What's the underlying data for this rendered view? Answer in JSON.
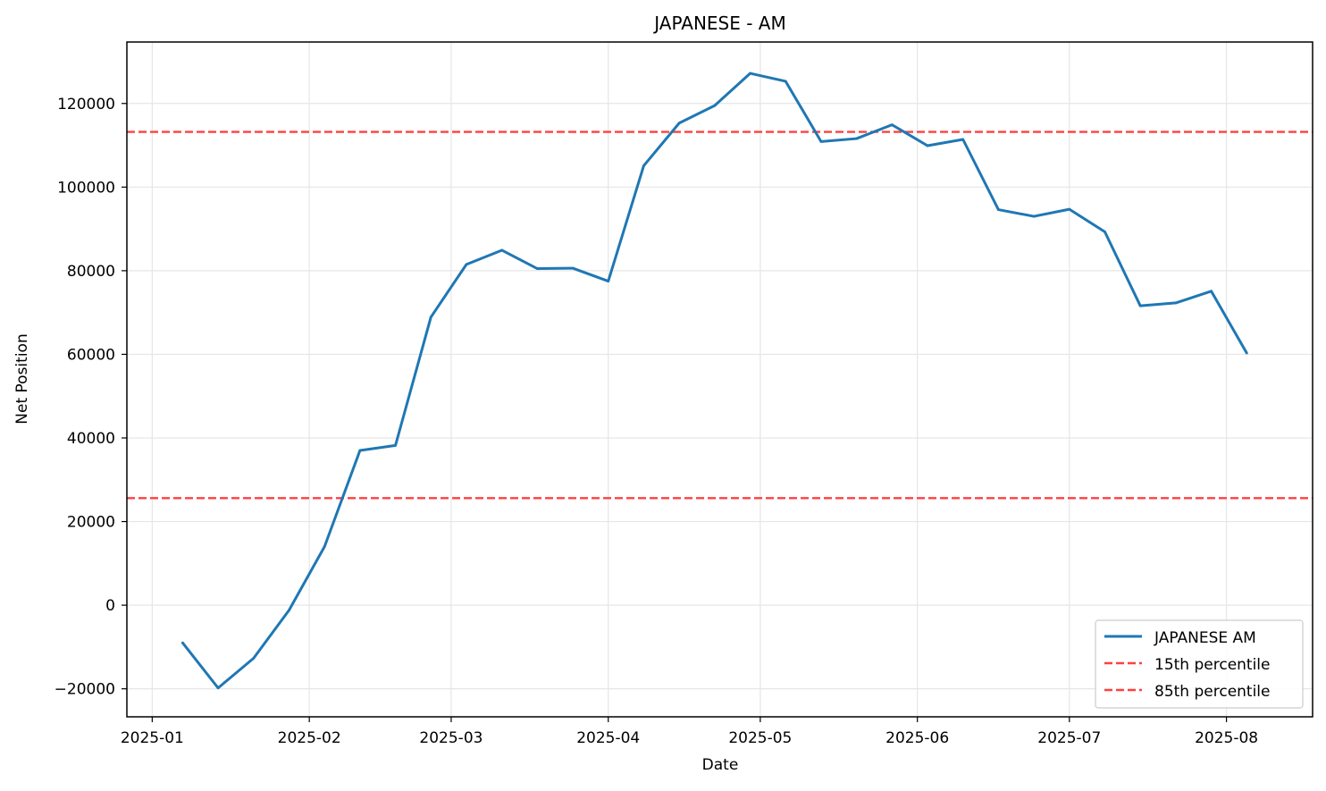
{
  "chart_data": {
    "type": "line",
    "title": "JAPANESE - AM",
    "xlabel": "Date",
    "ylabel": "Net Position",
    "x_ticks": [
      "2025-01",
      "2025-02",
      "2025-03",
      "2025-04",
      "2025-05",
      "2025-06",
      "2025-07",
      "2025-08"
    ],
    "y_ticks": [
      -20000,
      0,
      20000,
      40000,
      60000,
      80000,
      100000,
      120000
    ],
    "x_range": [
      "2024-12-27",
      "2025-08-18"
    ],
    "ylim": [
      -26700,
      134700
    ],
    "grid": true,
    "legend_position": "lower right",
    "series": [
      {
        "name": "JAPANESE AM",
        "color": "#1f77b4",
        "style": "solid",
        "points": [
          {
            "date": "2025-01-07",
            "value": -9000
          },
          {
            "date": "2025-01-14",
            "value": -19800
          },
          {
            "date": "2025-01-21",
            "value": -12700
          },
          {
            "date": "2025-01-28",
            "value": -1200
          },
          {
            "date": "2025-02-04",
            "value": 14000
          },
          {
            "date": "2025-02-11",
            "value": 37000
          },
          {
            "date": "2025-02-18",
            "value": 38200
          },
          {
            "date": "2025-02-25",
            "value": 68900
          },
          {
            "date": "2025-03-04",
            "value": 81500
          },
          {
            "date": "2025-03-11",
            "value": 84900
          },
          {
            "date": "2025-03-18",
            "value": 80500
          },
          {
            "date": "2025-03-25",
            "value": 80600
          },
          {
            "date": "2025-04-01",
            "value": 77500
          },
          {
            "date": "2025-04-08",
            "value": 105100
          },
          {
            "date": "2025-04-15",
            "value": 115300
          },
          {
            "date": "2025-04-22",
            "value": 119500
          },
          {
            "date": "2025-04-29",
            "value": 127200
          },
          {
            "date": "2025-05-06",
            "value": 125300
          },
          {
            "date": "2025-05-13",
            "value": 110900
          },
          {
            "date": "2025-05-20",
            "value": 111600
          },
          {
            "date": "2025-05-27",
            "value": 114900
          },
          {
            "date": "2025-06-03",
            "value": 109900
          },
          {
            "date": "2025-06-10",
            "value": 111400
          },
          {
            "date": "2025-06-17",
            "value": 94600
          },
          {
            "date": "2025-06-24",
            "value": 93000
          },
          {
            "date": "2025-07-01",
            "value": 94700
          },
          {
            "date": "2025-07-08",
            "value": 89300
          },
          {
            "date": "2025-07-15",
            "value": 71600
          },
          {
            "date": "2025-07-22",
            "value": 72300
          },
          {
            "date": "2025-07-29",
            "value": 75100
          },
          {
            "date": "2025-08-05",
            "value": 60300
          }
        ]
      }
    ],
    "reference_lines": [
      {
        "name": "15th percentile",
        "value": 25600,
        "color": "#ff4040",
        "style": "dashed"
      },
      {
        "name": "85th percentile",
        "value": 113200,
        "color": "#ff4040",
        "style": "dashed"
      }
    ],
    "colors": {
      "grid": "#e6e6e6",
      "axes": "#000000"
    }
  }
}
